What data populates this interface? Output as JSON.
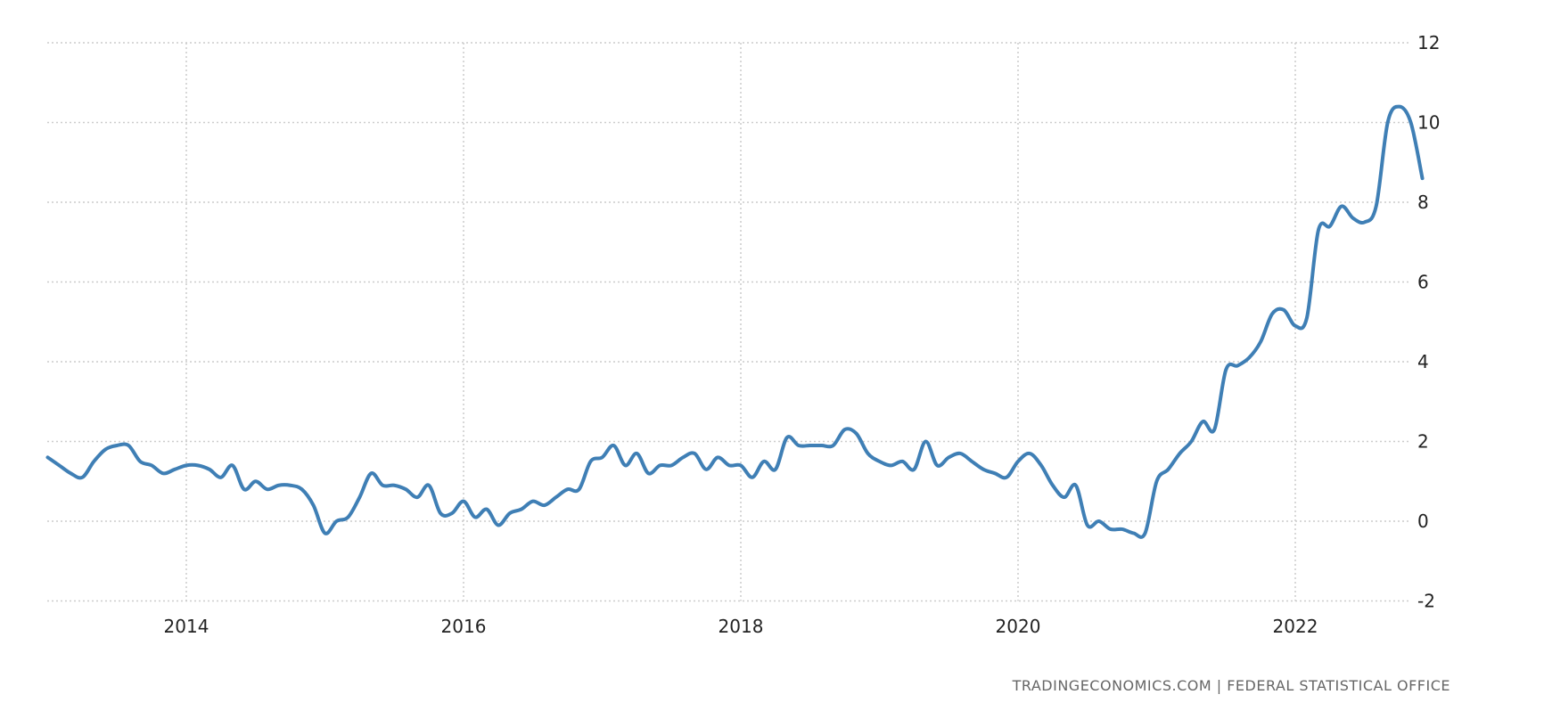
{
  "chart_data": {
    "type": "line",
    "title": "",
    "xlabel": "",
    "ylabel": "",
    "x_start": "2013-01",
    "frequency": "monthly",
    "x_ticks": [
      "2014",
      "2016",
      "2018",
      "2020",
      "2022"
    ],
    "y_ticks": [
      12,
      10,
      8,
      6,
      4,
      2,
      0,
      -2
    ],
    "ylim": [
      -2,
      12
    ],
    "xlim": [
      "2013-01",
      "2023-01"
    ],
    "grid": true,
    "line_color": "#3F7FB5",
    "grid_color": "#cccccc",
    "series": [
      {
        "values": [
          1.6,
          1.4,
          1.2,
          1.1,
          1.5,
          1.8,
          1.9,
          1.9,
          1.5,
          1.4,
          1.2,
          1.3,
          1.4,
          1.4,
          1.3,
          1.1,
          1.4,
          0.8,
          1.0,
          0.8,
          0.9,
          0.9,
          0.8,
          0.4,
          -0.3,
          0.0,
          0.1,
          0.6,
          1.2,
          0.9,
          0.9,
          0.8,
          0.6,
          0.9,
          0.2,
          0.2,
          0.5,
          0.1,
          0.3,
          -0.1,
          0.2,
          0.3,
          0.5,
          0.4,
          0.6,
          0.8,
          0.8,
          1.5,
          1.6,
          1.9,
          1.4,
          1.7,
          1.2,
          1.4,
          1.4,
          1.6,
          1.7,
          1.3,
          1.6,
          1.4,
          1.4,
          1.1,
          1.5,
          1.3,
          2.1,
          1.9,
          1.9,
          1.9,
          1.9,
          2.3,
          2.2,
          1.7,
          1.5,
          1.4,
          1.5,
          1.3,
          2.0,
          1.4,
          1.6,
          1.7,
          1.5,
          1.3,
          1.2,
          1.1,
          1.5,
          1.7,
          1.4,
          0.9,
          0.6,
          0.9,
          -0.1,
          0.0,
          -0.2,
          -0.2,
          -0.3,
          -0.3,
          1.0,
          1.3,
          1.7,
          2.0,
          2.5,
          2.3,
          3.8,
          3.9,
          4.1,
          4.5,
          5.2,
          5.3,
          4.9,
          5.1,
          7.3,
          7.4,
          7.9,
          7.6,
          7.5,
          7.9,
          10.0,
          10.4,
          10.0,
          8.6
        ]
      }
    ]
  },
  "footer": {
    "source": "TRADINGECONOMICS.COM  |  FEDERAL STATISTICAL OFFICE"
  }
}
